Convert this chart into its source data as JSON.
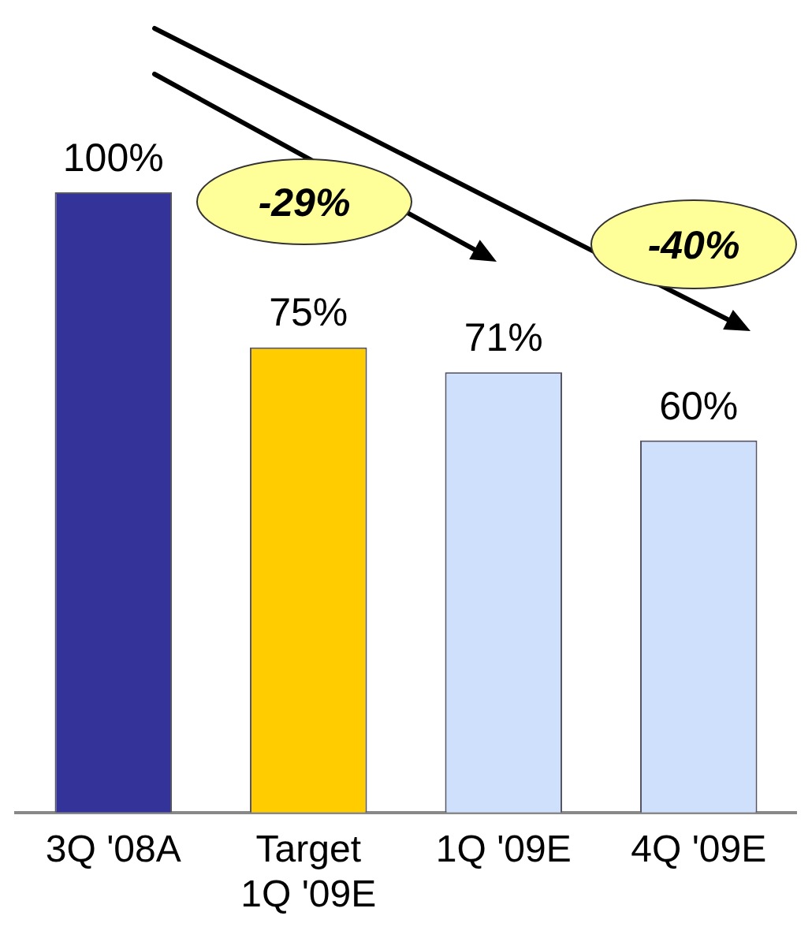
{
  "chart_data": {
    "type": "bar",
    "categories": [
      "3Q '08A",
      "Target 1Q '09E",
      "1Q '09E",
      "4Q '09E"
    ],
    "values": [
      100,
      75,
      71,
      60
    ],
    "colors": [
      "#333399",
      "#ffcc00",
      "#cfe0fc",
      "#cfe0fc"
    ],
    "value_labels": [
      "100%",
      "75%",
      "71%",
      "60%"
    ],
    "annotations": [
      "-29%",
      "-40%"
    ],
    "tick_labels": "x",
    "grid": false,
    "legend": false
  }
}
